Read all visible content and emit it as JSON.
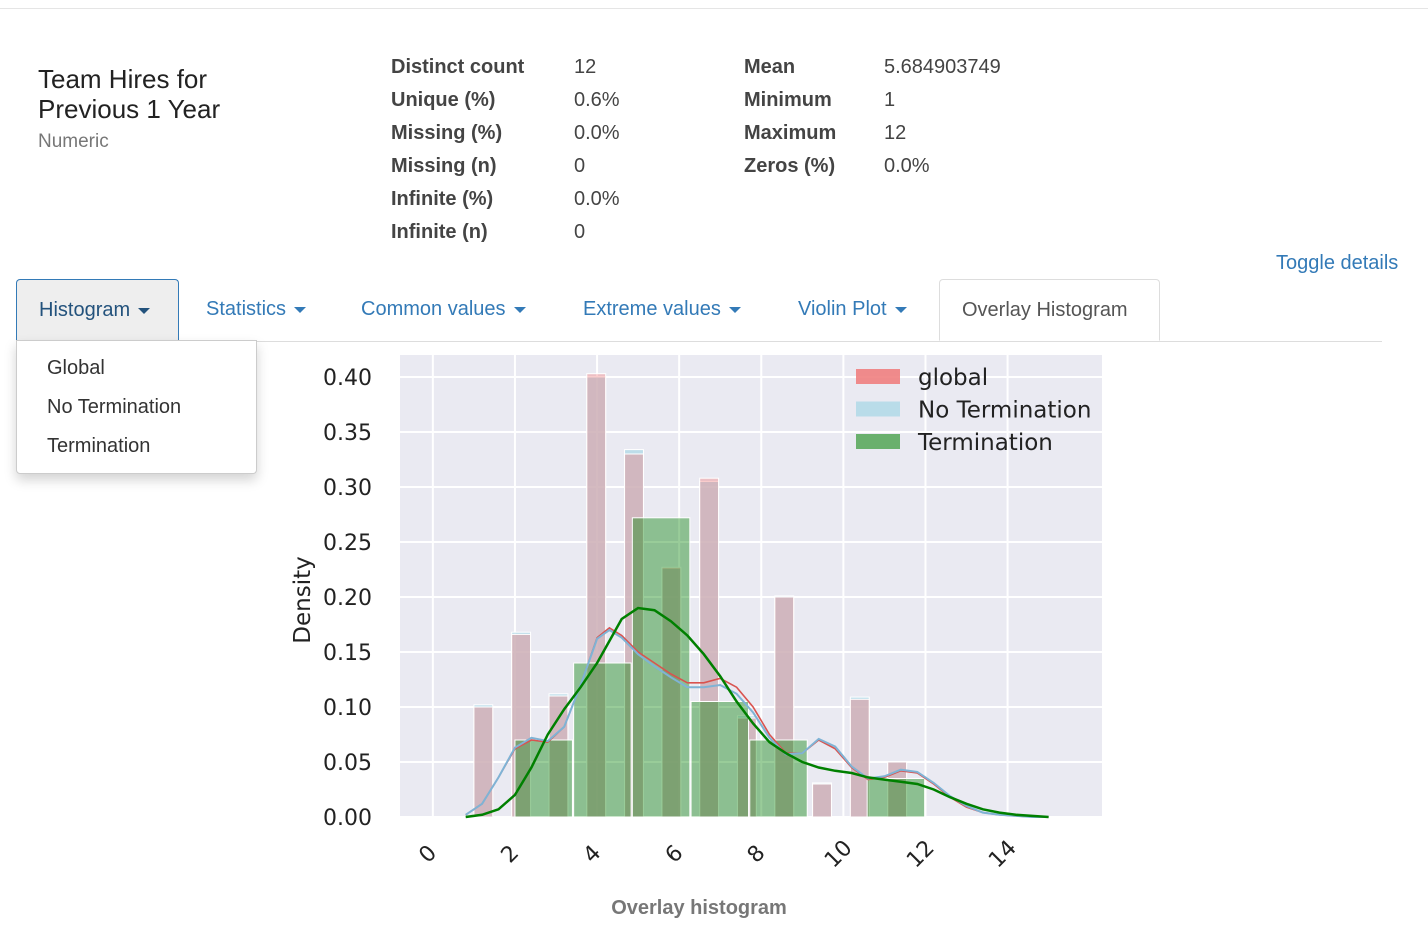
{
  "variable": {
    "title_line1": "Team Hires for",
    "title_line2": "Previous 1 Year",
    "type": "Numeric"
  },
  "stats_left": [
    {
      "label": "Distinct count",
      "value": "12"
    },
    {
      "label": "Unique (%)",
      "value": "0.6%"
    },
    {
      "label": "Missing (%)",
      "value": "0.0%"
    },
    {
      "label": "Missing (n)",
      "value": "0"
    },
    {
      "label": "Infinite (%)",
      "value": "0.0%"
    },
    {
      "label": "Infinite (n)",
      "value": "0"
    }
  ],
  "stats_right": [
    {
      "label": "Mean",
      "value": "5.684903749"
    },
    {
      "label": "Minimum",
      "value": "1"
    },
    {
      "label": "Maximum",
      "value": "12"
    },
    {
      "label": "Zeros (%)",
      "value": "0.0%"
    }
  ],
  "toggle_details": "Toggle details",
  "tabs": [
    {
      "label": "Histogram",
      "dropdown": true
    },
    {
      "label": "Statistics",
      "dropdown": true
    },
    {
      "label": "Common values",
      "dropdown": true
    },
    {
      "label": "Extreme values",
      "dropdown": true
    },
    {
      "label": "Violin Plot",
      "dropdown": true
    },
    {
      "label": "Overlay Histogram",
      "dropdown": false
    }
  ],
  "histogram_menu": [
    "Global",
    "No Termination",
    "Termination"
  ],
  "caption": "Overlay histogram",
  "colors": {
    "global": "#f08080",
    "no_termination": "#add8e6",
    "termination": "#008000",
    "plot_bg": "#eaeaf2",
    "link": "#337ab7"
  },
  "chart_data": {
    "type": "bar",
    "ylabel": "Density",
    "xlim": [
      -0.8,
      16.3
    ],
    "ylim": [
      0,
      0.42
    ],
    "x_ticks": [
      "0",
      "2",
      "4",
      "6",
      "8",
      "10",
      "12",
      "14"
    ],
    "y_ticks": [
      "0.00",
      "0.05",
      "0.10",
      "0.15",
      "0.20",
      "0.25",
      "0.30",
      "0.35",
      "0.40"
    ],
    "legend": [
      "global",
      "No Termination",
      "Termination"
    ],
    "legend_position": "top-right",
    "grid": true,
    "fine_bins": {
      "bins": [
        [
          1.0,
          1.46
        ],
        [
          1.92,
          2.38
        ],
        [
          2.83,
          3.29
        ],
        [
          3.75,
          4.21
        ],
        [
          4.67,
          5.13
        ],
        [
          5.58,
          6.04
        ],
        [
          6.5,
          6.96
        ],
        [
          7.42,
          7.88
        ],
        [
          8.33,
          8.79
        ],
        [
          9.25,
          9.71
        ],
        [
          10.17,
          10.63
        ],
        [
          11.08,
          11.54
        ]
      ],
      "global": [
        0.1,
        0.166,
        0.11,
        0.403,
        0.33,
        0.227,
        0.308,
        0.09,
        0.2,
        0.03,
        0.107,
        0.05
      ],
      "no_termination": [
        0.102,
        0.168,
        0.112,
        0.4,
        0.334,
        0.226,
        0.305,
        0.092,
        0.201,
        0.031,
        0.109,
        0.05
      ]
    },
    "termination_bins": {
      "bins": [
        [
          2.0,
          3.4
        ],
        [
          3.43,
          4.83
        ],
        [
          4.86,
          6.26
        ],
        [
          6.29,
          7.69
        ],
        [
          7.72,
          9.12
        ],
        [
          9.15,
          10.55
        ],
        [
          10.58,
          11.98
        ]
      ],
      "values": [
        0.07,
        0.14,
        0.272,
        0.105,
        0.07,
        0.0,
        0.035
      ]
    },
    "kde": {
      "x": [
        0.8,
        1.2,
        1.6,
        2.0,
        2.4,
        2.8,
        3.2,
        3.6,
        4.0,
        4.3,
        4.6,
        5.0,
        5.4,
        5.8,
        6.2,
        6.6,
        7.0,
        7.4,
        7.8,
        8.2,
        8.6,
        9.0,
        9.4,
        9.8,
        10.2,
        10.6,
        11.0,
        11.4,
        11.8,
        12.2,
        12.6,
        13.0,
        13.4,
        13.8,
        14.2,
        14.6,
        15.0
      ],
      "global": [
        0.002,
        0.012,
        0.036,
        0.062,
        0.07,
        0.068,
        0.082,
        0.12,
        0.163,
        0.172,
        0.165,
        0.15,
        0.14,
        0.13,
        0.122,
        0.122,
        0.126,
        0.118,
        0.1,
        0.075,
        0.058,
        0.058,
        0.07,
        0.062,
        0.045,
        0.034,
        0.036,
        0.042,
        0.04,
        0.03,
        0.018,
        0.009,
        0.004,
        0.002,
        0.001,
        0.0,
        0.0
      ],
      "no_termination": [
        0.002,
        0.012,
        0.036,
        0.063,
        0.072,
        0.069,
        0.082,
        0.12,
        0.162,
        0.17,
        0.163,
        0.148,
        0.137,
        0.127,
        0.118,
        0.118,
        0.12,
        0.112,
        0.095,
        0.072,
        0.057,
        0.058,
        0.071,
        0.064,
        0.046,
        0.035,
        0.037,
        0.043,
        0.041,
        0.031,
        0.019,
        0.01,
        0.004,
        0.002,
        0.001,
        0.0,
        0.0
      ],
      "termination": [
        0.0,
        0.002,
        0.007,
        0.02,
        0.045,
        0.075,
        0.098,
        0.118,
        0.14,
        0.16,
        0.18,
        0.19,
        0.188,
        0.178,
        0.165,
        0.148,
        0.128,
        0.105,
        0.085,
        0.068,
        0.058,
        0.05,
        0.045,
        0.042,
        0.04,
        0.036,
        0.034,
        0.032,
        0.03,
        0.025,
        0.018,
        0.012,
        0.007,
        0.004,
        0.002,
        0.001,
        0.0
      ]
    }
  }
}
